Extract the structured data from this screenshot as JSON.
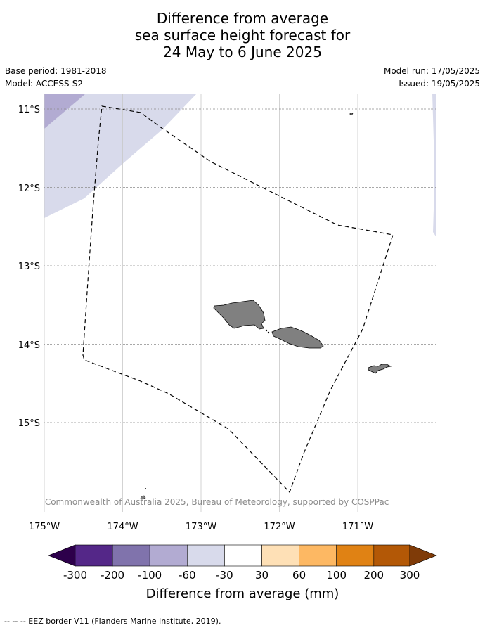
{
  "title": {
    "line1": "Difference from average",
    "line2": "sea surface height forecast for",
    "line3": "24 May to 6 June 2025"
  },
  "meta": {
    "base_period": "Base period: 1981-2018",
    "model": "Model: ACCESS-S2",
    "model_run": "Model run: 17/05/2025",
    "issued": "Issued: 19/05/2025"
  },
  "map": {
    "lon_ticks": [
      "175°W",
      "174°W",
      "173°W",
      "172°W",
      "171°W"
    ],
    "lat_ticks": [
      "11°S",
      "12°S",
      "13°S",
      "14°S",
      "15°S"
    ],
    "copyright": "© Commonwealth of Australia 2025, Bureau of Meteorology, supported by COSPPac",
    "land_color": "#808080",
    "eez_line_style": "dashed"
  },
  "colorbar": {
    "title": "Difference from average (mm)",
    "tick_labels": [
      "-300",
      "-200",
      "-100",
      "-60",
      "-30",
      "30",
      "60",
      "100",
      "200",
      "300"
    ],
    "colors": [
      "#2d004b",
      "#542788",
      "#8073ac",
      "#b2abd2",
      "#d8daeb",
      "#ffffff",
      "#fee0b6",
      "#fdb863",
      "#e08214",
      "#b35806",
      "#7f3b08"
    ]
  },
  "footer": {
    "legend": "--  --  -- EEZ border V11 (Flanders Marine Institute, 2019)."
  }
}
